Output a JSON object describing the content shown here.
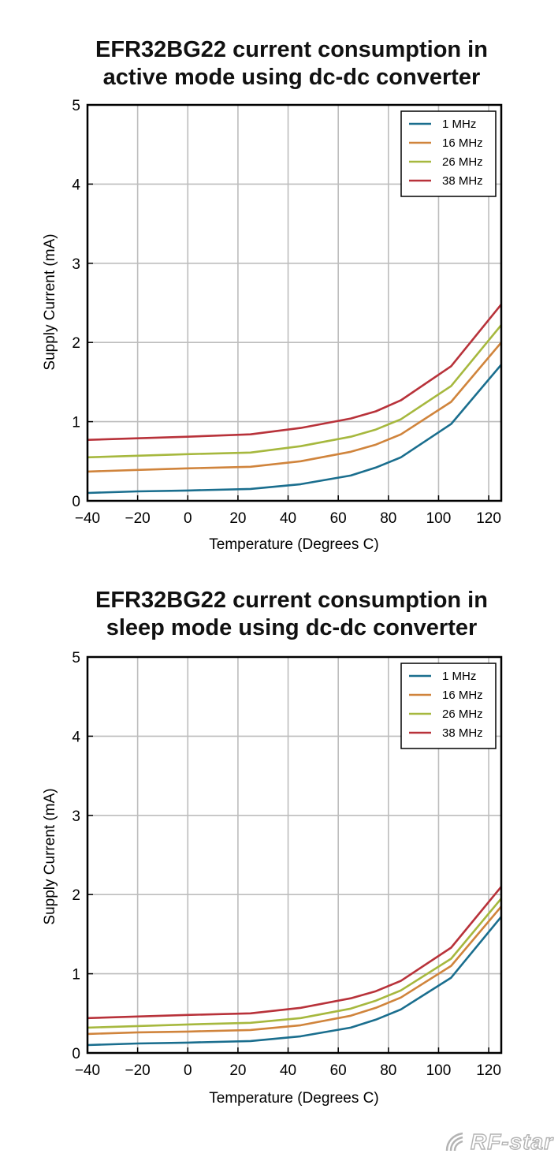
{
  "charts": [
    {
      "title_line1": "EFR32BG22 current consumption in",
      "title_line2": "active mode using dc-dc converter",
      "xlabel": "Temperature (Degrees C)",
      "ylabel": "Supply Current (mA)",
      "xticks": [
        -40,
        -20,
        0,
        20,
        40,
        60,
        80,
        100,
        120
      ],
      "yticks": [
        0,
        1,
        2,
        3,
        4,
        5
      ]
    },
    {
      "title_line1": "EFR32BG22 current consumption in",
      "title_line2": "sleep mode using dc-dc converter",
      "xlabel": "Temperature (Degrees C)",
      "ylabel": "Supply Current (mA)",
      "xticks": [
        -40,
        -20,
        0,
        20,
        40,
        60,
        80,
        100,
        120
      ],
      "yticks": [
        0,
        1,
        2,
        3,
        4,
        5
      ]
    }
  ],
  "chart_data": [
    {
      "type": "line",
      "title": "EFR32BG22 current consumption in active mode using dc-dc converter",
      "xlabel": "Temperature (Degrees C)",
      "ylabel": "Supply Current (mA)",
      "xlim": [
        -40,
        125
      ],
      "ylim": [
        0,
        5
      ],
      "grid": true,
      "legend_position": "top-right",
      "series": [
        {
          "name": "1 MHz",
          "color": "#1a6e8e",
          "x": [
            -40,
            -20,
            0,
            25,
            45,
            65,
            75,
            85,
            105,
            125
          ],
          "y": [
            0.1,
            0.12,
            0.13,
            0.15,
            0.21,
            0.32,
            0.42,
            0.55,
            0.97,
            1.72
          ]
        },
        {
          "name": "16 MHz",
          "color": "#d0843c",
          "x": [
            -40,
            -20,
            0,
            25,
            45,
            65,
            75,
            85,
            105,
            125
          ],
          "y": [
            0.37,
            0.39,
            0.41,
            0.43,
            0.5,
            0.62,
            0.71,
            0.84,
            1.25,
            2.0
          ]
        },
        {
          "name": "26 MHz",
          "color": "#a6b83e",
          "x": [
            -40,
            -20,
            0,
            25,
            45,
            65,
            75,
            85,
            105,
            125
          ],
          "y": [
            0.55,
            0.57,
            0.59,
            0.61,
            0.69,
            0.81,
            0.9,
            1.03,
            1.45,
            2.22
          ]
        },
        {
          "name": "38 MHz",
          "color": "#b8323a",
          "x": [
            -40,
            -20,
            0,
            25,
            45,
            65,
            75,
            85,
            105,
            125
          ],
          "y": [
            0.77,
            0.79,
            0.81,
            0.84,
            0.92,
            1.04,
            1.13,
            1.27,
            1.7,
            2.48
          ]
        }
      ]
    },
    {
      "type": "line",
      "title": "EFR32BG22 current consumption in sleep mode using dc-dc converter",
      "xlabel": "Temperature (Degrees C)",
      "ylabel": "Supply Current (mA)",
      "xlim": [
        -40,
        125
      ],
      "ylim": [
        0,
        5
      ],
      "grid": true,
      "legend_position": "top-right",
      "series": [
        {
          "name": "1 MHz",
          "color": "#1a6e8e",
          "x": [
            -40,
            -20,
            0,
            25,
            45,
            65,
            75,
            85,
            105,
            125
          ],
          "y": [
            0.1,
            0.12,
            0.13,
            0.15,
            0.21,
            0.32,
            0.42,
            0.55,
            0.95,
            1.72
          ]
        },
        {
          "name": "16 MHz",
          "color": "#d0843c",
          "x": [
            -40,
            -20,
            0,
            25,
            45,
            65,
            75,
            85,
            105,
            125
          ],
          "y": [
            0.24,
            0.26,
            0.27,
            0.29,
            0.35,
            0.47,
            0.57,
            0.7,
            1.1,
            1.85
          ]
        },
        {
          "name": "26 MHz",
          "color": "#a6b83e",
          "x": [
            -40,
            -20,
            0,
            25,
            45,
            65,
            75,
            85,
            105,
            125
          ],
          "y": [
            0.32,
            0.34,
            0.36,
            0.38,
            0.44,
            0.56,
            0.66,
            0.79,
            1.19,
            1.95
          ]
        },
        {
          "name": "38 MHz",
          "color": "#b8323a",
          "x": [
            -40,
            -20,
            0,
            25,
            45,
            65,
            75,
            85,
            105,
            125
          ],
          "y": [
            0.44,
            0.46,
            0.48,
            0.5,
            0.57,
            0.69,
            0.78,
            0.91,
            1.33,
            2.1
          ]
        }
      ]
    }
  ],
  "watermark": {
    "icon": "rf-star-logo-icon",
    "text": "RF-star"
  }
}
